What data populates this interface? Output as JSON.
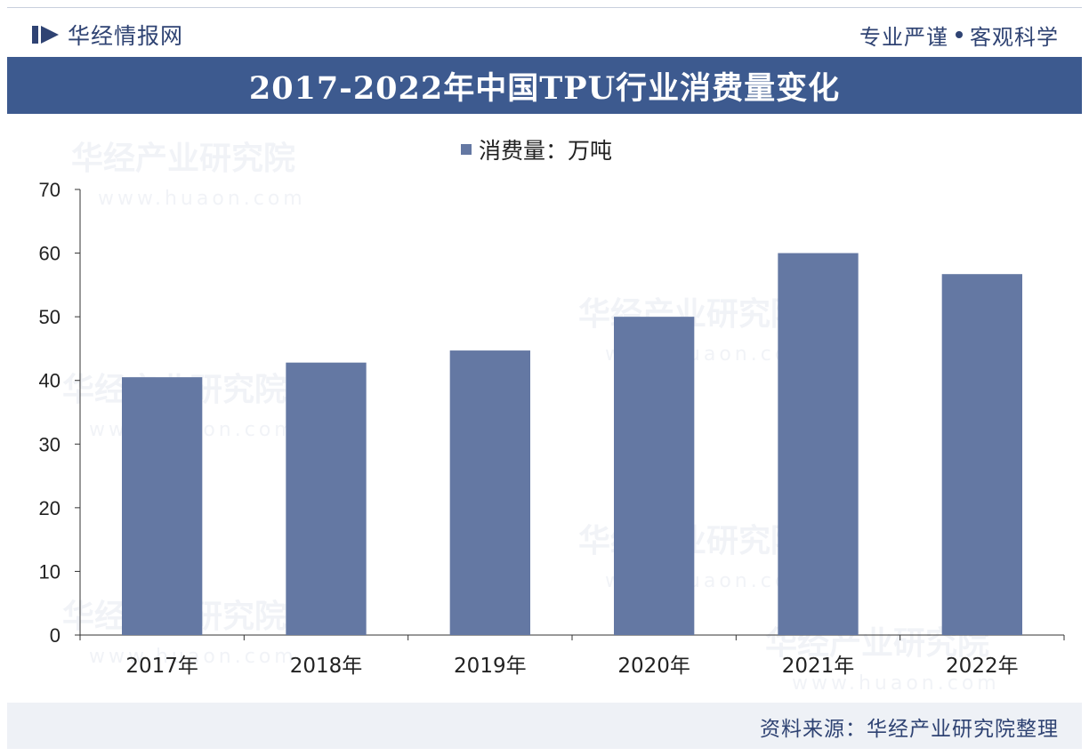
{
  "header": {
    "brand_name": "华经情报网",
    "slogan_left": "专业严谨",
    "slogan_right": "客观科学"
  },
  "title": "2017-2022年中国TPU行业消费量变化",
  "legend": {
    "label": "消费量：万吨",
    "color": "#6478a3"
  },
  "watermark": {
    "text": "华经产业研究院",
    "url": "www.huaon.com"
  },
  "footer": {
    "source": "资料来源：华经产业研究院整理"
  },
  "colors": {
    "title_bar": "#3d5a8f",
    "bar": "#6478a3",
    "brand_text": "#2f4373"
  },
  "chart_data": {
    "type": "bar",
    "title": "2017-2022年中国TPU行业消费量变化",
    "categories": [
      "2017年",
      "2018年",
      "2019年",
      "2020年",
      "2021年",
      "2022年"
    ],
    "series": [
      {
        "name": "消费量：万吨",
        "values": [
          40.5,
          42.8,
          44.7,
          50.0,
          60.0,
          56.7
        ]
      }
    ],
    "ylim": [
      0,
      70
    ],
    "yticks": [
      0,
      10,
      20,
      30,
      40,
      50,
      60,
      70
    ],
    "grid": false,
    "legend_position": "top-center"
  }
}
